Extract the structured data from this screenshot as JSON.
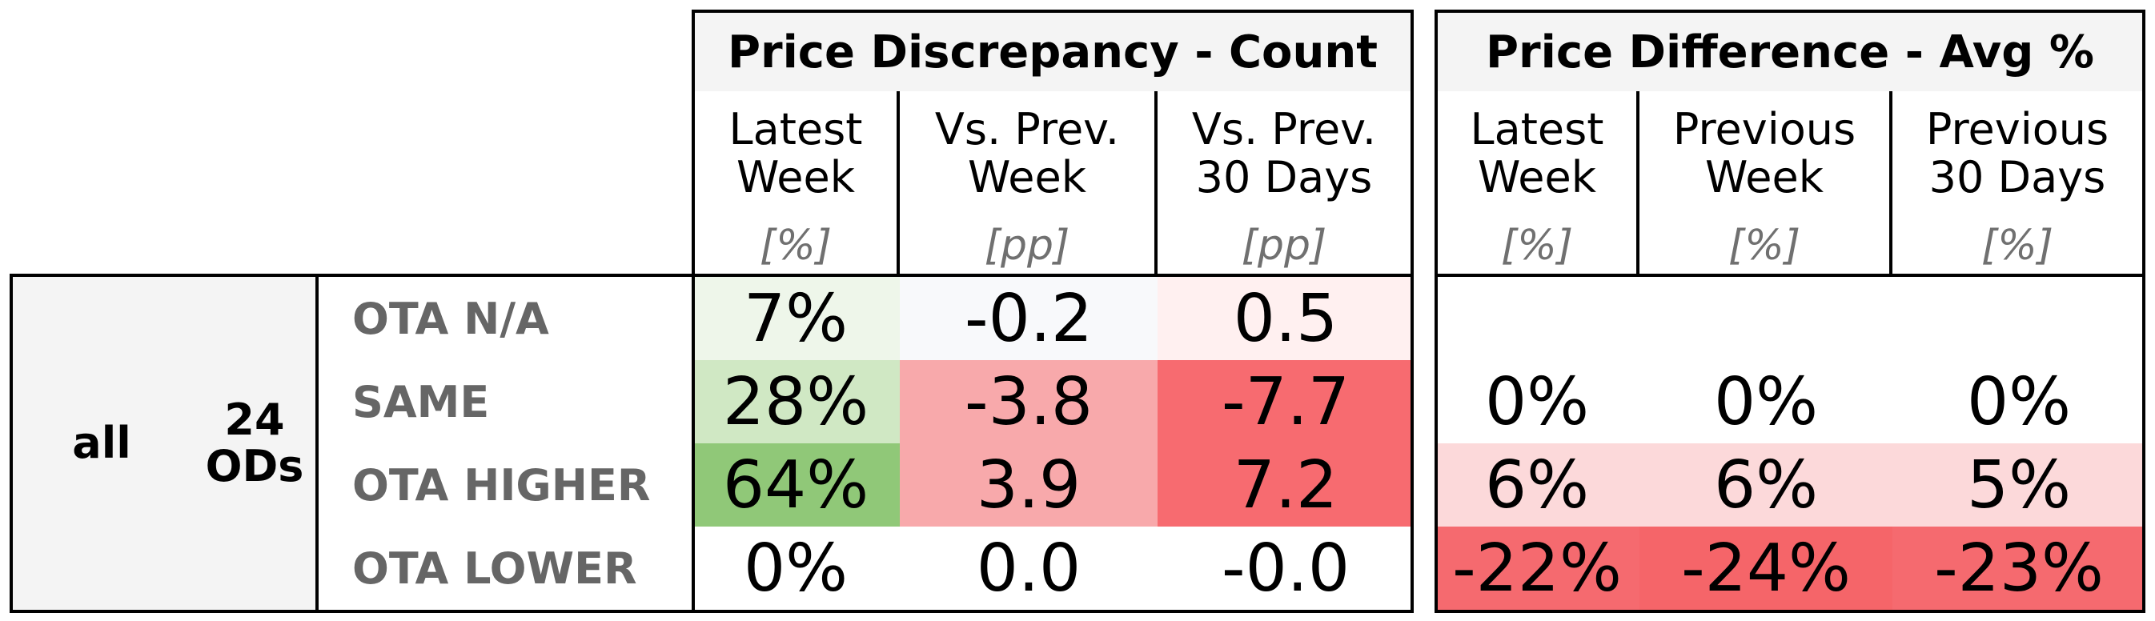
{
  "chart_data": {
    "type": "table",
    "row_group": {
      "level1": "all",
      "level2": "24\nODs"
    },
    "row_labels": [
      "OTA N/A",
      "SAME",
      "OTA HIGHER",
      "OTA LOWER"
    ],
    "sections": [
      {
        "title": "Price Discrepancy - Count",
        "columns": [
          {
            "header": "Latest\nWeek",
            "unit": "[%]",
            "values": [
              "7%",
              "28%",
              "64%",
              "0%"
            ],
            "fills": [
              "#eef6ea",
              "#d0e8c4",
              "#90c878",
              "#ffffff"
            ]
          },
          {
            "header": "Vs. Prev.\nWeek",
            "unit": "[pp]",
            "values": [
              "-0.2",
              "-3.8",
              "3.9",
              "0.0"
            ],
            "fills": [
              "#f8f9fb",
              "#f8a9ab",
              "#f8a9ab",
              "#ffffff"
            ]
          },
          {
            "header": "Vs. Prev.\n30 Days",
            "unit": "[pp]",
            "values": [
              "0.5",
              "-7.7",
              "7.2",
              "-0.0"
            ],
            "fills": [
              "#fff0f0",
              "#f76b70",
              "#f76b70",
              "#ffffff"
            ]
          }
        ]
      },
      {
        "title": "Price Difference - Avg %",
        "columns": [
          {
            "header": "Latest\nWeek",
            "unit": "[%]",
            "values": [
              "",
              "0%",
              "6%",
              "-22%"
            ],
            "fills": [
              "#ffffff",
              "#ffffff",
              "#fcd9da",
              "#f56a6f"
            ]
          },
          {
            "header": "Previous\nWeek",
            "unit": "[%]",
            "values": [
              "",
              "0%",
              "6%",
              "-24%"
            ],
            "fills": [
              "#ffffff",
              "#ffffff",
              "#fcd9da",
              "#f56569"
            ]
          },
          {
            "header": "Previous\n30 Days",
            "unit": "[%]",
            "values": [
              "",
              "0%",
              "5%",
              "-23%"
            ],
            "fills": [
              "#ffffff",
              "#ffffff",
              "#fcd9da",
              "#f56a6f"
            ]
          }
        ]
      }
    ]
  }
}
